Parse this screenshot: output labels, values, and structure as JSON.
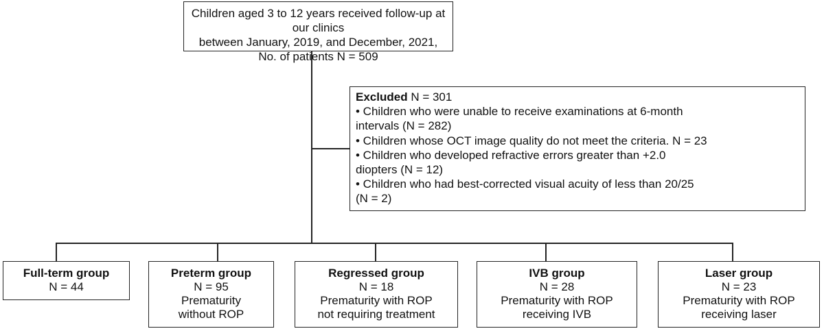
{
  "top": {
    "line1": "Children aged 3 to 12 years received follow-up at our clinics",
    "line2": "between January, 2019, and December, 2021,",
    "line3": "No. of patients N = 509"
  },
  "excluded": {
    "title": "Excluded",
    "count": " N = 301",
    "items": [
      [
        "• Children who were unable to receive examinations at 6-month",
        "intervals (N = 282)"
      ],
      [
        "• Children whose OCT image quality do not meet the criteria. N = 23"
      ],
      [
        "• Children who developed refractive errors greater than +2.0",
        "diopters (N = 12)"
      ],
      [
        "• Children who had best-corrected visual acuity of less than 20/25",
        "(N = 2)"
      ]
    ]
  },
  "groups": [
    {
      "title": "Full-term group",
      "n": "N = 44",
      "desc1": "",
      "desc2": ""
    },
    {
      "title": "Preterm group",
      "n": "N = 95",
      "desc1": "Prematurity",
      "desc2": "without ROP"
    },
    {
      "title": "Regressed group",
      "n": "N = 18",
      "desc1": "Prematurity with ROP",
      "desc2": "not requiring treatment"
    },
    {
      "title": "IVB group",
      "n": "N = 28",
      "desc1": "Prematurity with ROP",
      "desc2": "receiving IVB"
    },
    {
      "title": "Laser group",
      "n": "N = 23",
      "desc1": "Prematurity with ROP",
      "desc2": "receiving laser"
    }
  ]
}
